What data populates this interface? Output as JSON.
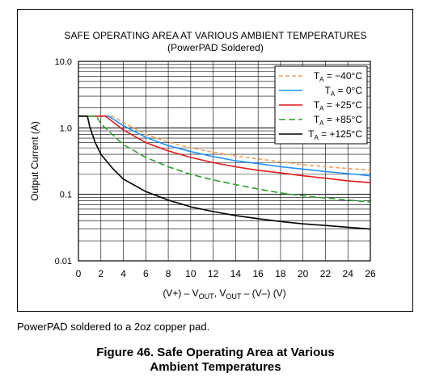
{
  "chart_data": {
    "type": "line",
    "title": "SAFE OPERATING AREA AT VARIOUS AMBIENT TEMPERATURES",
    "subtitle": "(PowerPAD Soldered)",
    "xlabel_parts": [
      "(V+) – V",
      "OUT",
      ", V",
      "OUT",
      " – (V–) (V)"
    ],
    "ylabel": "Output Current (A)",
    "x_ticks": [
      "0",
      "2",
      "4",
      "6",
      "8",
      "10",
      "12",
      "14",
      "16",
      "18",
      "20",
      "22",
      "24",
      "26"
    ],
    "y_ticks": [
      "0.01",
      "0.1",
      "1.0",
      "10.0"
    ],
    "xlim": [
      0,
      26
    ],
    "ylim": [
      0.01,
      10
    ],
    "y_scale": "log",
    "grid": true,
    "legend_position": "top-right",
    "series": [
      {
        "name_main": "T",
        "name_sub": "A",
        "name_rest": " = −40°C",
        "color": "#f4a460",
        "dash": "5,3",
        "x": [
          0,
          3,
          4,
          6,
          8,
          10,
          12,
          14,
          16,
          18,
          20,
          22,
          24,
          26
        ],
        "y": [
          1.5,
          1.5,
          1.2,
          0.8,
          0.61,
          0.5,
          0.43,
          0.38,
          0.34,
          0.31,
          0.28,
          0.26,
          0.245,
          0.23
        ]
      },
      {
        "name_main": "T",
        "name_sub": "A",
        "name_rest": " = 0°C",
        "color": "#1e90ff",
        "dash": "",
        "x": [
          0,
          2.7,
          4,
          6,
          8,
          10,
          12,
          14,
          16,
          18,
          20,
          22,
          24,
          26
        ],
        "y": [
          1.5,
          1.5,
          1.08,
          0.72,
          0.54,
          0.44,
          0.37,
          0.32,
          0.29,
          0.26,
          0.24,
          0.22,
          0.205,
          0.19
        ]
      },
      {
        "name_main": "T",
        "name_sub": "A",
        "name_rest": " = +25°C",
        "color": "#e41a1c",
        "dash": "",
        "x": [
          0,
          2.4,
          4,
          6,
          8,
          10,
          12,
          14,
          16,
          18,
          20,
          22,
          24,
          26
        ],
        "y": [
          1.5,
          1.5,
          0.93,
          0.6,
          0.45,
          0.36,
          0.3,
          0.26,
          0.23,
          0.21,
          0.19,
          0.175,
          0.16,
          0.15
        ]
      },
      {
        "name_main": "T",
        "name_sub": "A",
        "name_rest": " = +85°C",
        "color": "#2ca02c",
        "dash": "8,4",
        "x": [
          0,
          1.6,
          2,
          3,
          4,
          6,
          8,
          10,
          12,
          14,
          16,
          18,
          20,
          22,
          24,
          26
        ],
        "y": [
          1.5,
          1.5,
          1.15,
          0.8,
          0.56,
          0.36,
          0.26,
          0.2,
          0.165,
          0.14,
          0.12,
          0.105,
          0.095,
          0.088,
          0.082,
          0.077
        ]
      },
      {
        "name_main": "T",
        "name_sub": "A",
        "name_rest": " = +125°C",
        "color": "#000000",
        "dash": "",
        "x": [
          0,
          0.8,
          1,
          1.5,
          2,
          3,
          4,
          6,
          8,
          10,
          12,
          14,
          16,
          18,
          20,
          22,
          24,
          26
        ],
        "y": [
          1.5,
          1.5,
          1.05,
          0.6,
          0.4,
          0.25,
          0.17,
          0.11,
          0.082,
          0.065,
          0.055,
          0.048,
          0.043,
          0.039,
          0.036,
          0.034,
          0.032,
          0.03
        ]
      }
    ]
  },
  "caption": "PowerPAD soldered to a 2oz copper pad.",
  "figure_title_line1": "Figure 46.  Safe Operating Area at Various",
  "figure_title_line2": "Ambient Temperatures"
}
